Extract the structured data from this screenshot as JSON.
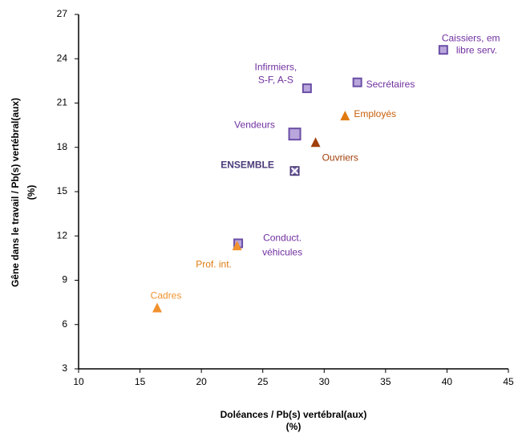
{
  "chart_data": {
    "type": "scatter",
    "xlabel": [
      "Doléances / Pb(s) vertébral(aux)",
      "(%)"
    ],
    "ylabel": [
      "Gêne dans le travail  / Pb(s) vertébral(aux)",
      "(%)"
    ],
    "xlim": [
      10,
      45
    ],
    "xticks": [
      10,
      15,
      20,
      25,
      30,
      35,
      40,
      45
    ],
    "ylim": [
      3,
      27
    ],
    "yticks": [
      3,
      6,
      9,
      12,
      15,
      18,
      21,
      24,
      27
    ],
    "grid": false,
    "points": [
      {
        "label": [
          "Caissiers, em",
          "libre serv."
        ],
        "x": 39.7,
        "y": 24.6,
        "marker": "square",
        "color": "#b9a6dc",
        "edge": "#6a4ea6",
        "text_color": "#7030a0"
      },
      {
        "label": [
          "Infirmiers,",
          "S-F, A-S"
        ],
        "x": 28.6,
        "y": 22.0,
        "marker": "square",
        "color": "#b9a6dc",
        "edge": "#6a4ea6",
        "text_color": "#7030a0"
      },
      {
        "label": [
          "Secrétaires"
        ],
        "x": 32.7,
        "y": 22.4,
        "marker": "square",
        "color": "#b9a6dc",
        "edge": "#6a4ea6",
        "text_color": "#7030a0"
      },
      {
        "label": [
          "Employés"
        ],
        "x": 31.7,
        "y": 20.1,
        "marker": "triangle",
        "color": "#e07a10",
        "edge": "#e07a10",
        "text_color": "#c8600a"
      },
      {
        "label": [
          "Vendeurs"
        ],
        "x": 27.6,
        "y": 18.9,
        "marker": "square",
        "color": "#b9a6dc",
        "edge": "#6a4ea6",
        "text_color": "#7030a0"
      },
      {
        "label": [
          "Ouvriers"
        ],
        "x": 29.3,
        "y": 18.3,
        "marker": "triangle",
        "color": "#a0400a",
        "edge": "#a0400a",
        "text_color": "#a0400a"
      },
      {
        "label": [
          "ENSEMBLE"
        ],
        "x": 27.6,
        "y": 16.4,
        "marker": "xsquare",
        "color": "#8a7ab8",
        "edge": "#4b3a7a",
        "text_color": "#4b3a7a"
      },
      {
        "label": [
          "Conduct.",
          "véhicules"
        ],
        "x": 23.0,
        "y": 11.5,
        "marker": "square",
        "color": "#b9a6dc",
        "edge": "#6a4ea6",
        "text_color": "#7030a0"
      },
      {
        "label": [
          "Prof. int."
        ],
        "x": 22.9,
        "y": 11.3,
        "marker": "triangle",
        "color": "#f0922e",
        "edge": "#f0922e",
        "text_color": "#e07a10"
      },
      {
        "label": [
          "Cadres"
        ],
        "x": 16.4,
        "y": 7.1,
        "marker": "triangle",
        "color": "#f0922e",
        "edge": "#f0922e",
        "text_color": "#f0922e"
      }
    ]
  }
}
